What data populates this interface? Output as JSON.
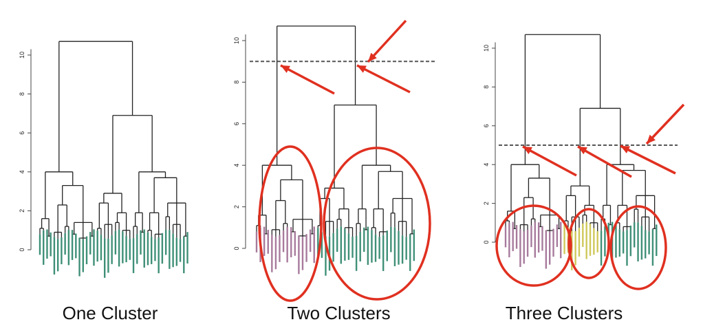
{
  "colors": {
    "tree": "#222222",
    "cut_line": "#555555",
    "arrow": "#e03020",
    "circle": "#e03020",
    "green": "#3f8f77",
    "purple": "#a77a9c",
    "yellow": "#cfc85a"
  },
  "panels": [
    {
      "caption": "One Cluster",
      "ticks": [
        "0",
        "2",
        "4",
        "6",
        "8",
        "10"
      ],
      "cut_height": null,
      "clusters": 1
    },
    {
      "caption": "Two Clusters",
      "ticks": [
        "0",
        "2",
        "4",
        "6",
        "8",
        "10"
      ],
      "cut_height": 9,
      "clusters": 2
    },
    {
      "caption": "Three Clusters",
      "ticks": [
        "0",
        "2",
        "4",
        "6",
        "8",
        "10"
      ],
      "cut_height": 5,
      "clusters": 3
    }
  ]
}
